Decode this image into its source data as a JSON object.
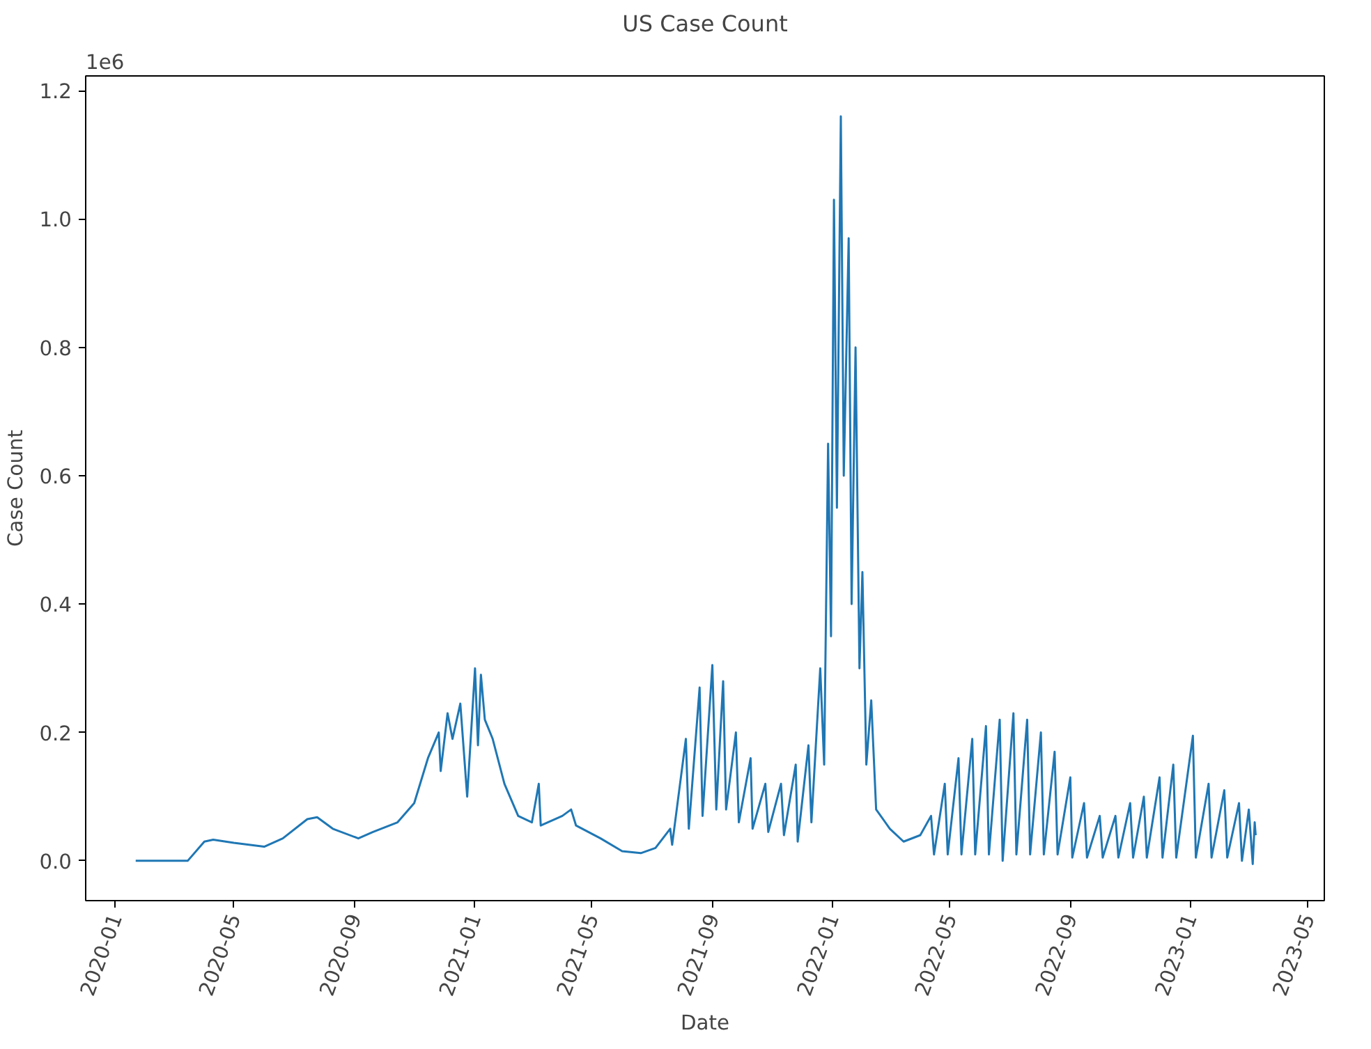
{
  "chart_data": {
    "type": "line",
    "title": "US Case Count",
    "xlabel": "Date",
    "ylabel": "Case Count",
    "annotations": [
      "1e6"
    ],
    "xlim": [
      "2019-12-02",
      "2023-05-18"
    ],
    "xticks": [
      "2020-01",
      "2020-05",
      "2020-09",
      "2021-01",
      "2021-05",
      "2021-09",
      "2022-01",
      "2022-05",
      "2022-09",
      "2023-01",
      "2023-05"
    ],
    "ylim": [
      -0.062,
      1.223
    ],
    "yticks": [
      {
        "value": 0,
        "label": "0.0"
      },
      {
        "value": 0.2,
        "label": "0.2"
      },
      {
        "value": 0.4,
        "label": "0.4"
      },
      {
        "value": 0.6,
        "label": "0.6"
      },
      {
        "value": 0.8,
        "label": "0.8"
      },
      {
        "value": 1.0,
        "label": "1.0"
      },
      {
        "value": 1.2,
        "label": "1.2"
      }
    ],
    "grid": false,
    "line_style": "solid",
    "marker": "none",
    "series": [
      {
        "color": "#1f77b4",
        "x": [
          "2020-01-22",
          "2020-03-15",
          "2020-04-01",
          "2020-04-10",
          "2020-05-01",
          "2020-06-01",
          "2020-06-20",
          "2020-07-15",
          "2020-07-25",
          "2020-08-10",
          "2020-09-05",
          "2020-09-20",
          "2020-10-15",
          "2020-11-01",
          "2020-11-15",
          "2020-11-26",
          "2020-11-28",
          "2020-12-05",
          "2020-12-10",
          "2020-12-18",
          "2020-12-25",
          "2021-01-02",
          "2021-01-05",
          "2021-01-08",
          "2021-01-12",
          "2021-01-20",
          "2021-02-01",
          "2021-02-15",
          "2021-03-01",
          "2021-03-08",
          "2021-03-10",
          "2021-04-01",
          "2021-04-10",
          "2021-04-15",
          "2021-05-10",
          "2021-06-01",
          "2021-06-20",
          "2021-07-05",
          "2021-07-20",
          "2021-07-22",
          "2021-08-05",
          "2021-08-08",
          "2021-08-19",
          "2021-08-22",
          "2021-09-01",
          "2021-09-05",
          "2021-09-12",
          "2021-09-15",
          "2021-09-25",
          "2021-09-28",
          "2021-10-10",
          "2021-10-12",
          "2021-10-25",
          "2021-10-28",
          "2021-11-10",
          "2021-11-13",
          "2021-11-25",
          "2021-11-27",
          "2021-12-08",
          "2021-12-11",
          "2021-12-20",
          "2021-12-24",
          "2021-12-28",
          "2021-12-31",
          "2022-01-03",
          "2022-01-06",
          "2022-01-10",
          "2022-01-13",
          "2022-01-18",
          "2022-01-21",
          "2022-01-25",
          "2022-01-29",
          "2022-02-01",
          "2022-02-05",
          "2022-02-10",
          "2022-02-15",
          "2022-03-01",
          "2022-03-15",
          "2022-04-01",
          "2022-04-12",
          "2022-04-15",
          "2022-04-26",
          "2022-04-29",
          "2022-05-10",
          "2022-05-13",
          "2022-05-24",
          "2022-05-27",
          "2022-06-07",
          "2022-06-10",
          "2022-06-21",
          "2022-06-24",
          "2022-07-05",
          "2022-07-08",
          "2022-07-19",
          "2022-07-22",
          "2022-08-02",
          "2022-08-05",
          "2022-08-16",
          "2022-08-19",
          "2022-09-01",
          "2022-09-03",
          "2022-09-15",
          "2022-09-18",
          "2022-10-01",
          "2022-10-04",
          "2022-10-17",
          "2022-10-20",
          "2022-11-01",
          "2022-11-04",
          "2022-11-15",
          "2022-11-18",
          "2022-12-01",
          "2022-12-04",
          "2022-12-15",
          "2022-12-18",
          "2023-01-04",
          "2023-01-07",
          "2023-01-20",
          "2023-01-23",
          "2023-02-05",
          "2023-02-08",
          "2023-02-20",
          "2023-02-23",
          "2023-03-02",
          "2023-03-06",
          "2023-03-08",
          "2023-03-09"
        ],
        "values": [
          0,
          0,
          0.03,
          0.033,
          0.028,
          0.022,
          0.035,
          0.065,
          0.068,
          0.05,
          0.035,
          0.045,
          0.06,
          0.09,
          0.16,
          0.2,
          0.14,
          0.23,
          0.19,
          0.245,
          0.1,
          0.3,
          0.18,
          0.29,
          0.22,
          0.19,
          0.12,
          0.07,
          0.06,
          0.12,
          0.055,
          0.07,
          0.08,
          0.055,
          0.035,
          0.015,
          0.012,
          0.02,
          0.05,
          0.025,
          0.19,
          0.05,
          0.27,
          0.07,
          0.305,
          0.08,
          0.28,
          0.08,
          0.2,
          0.06,
          0.16,
          0.05,
          0.12,
          0.045,
          0.12,
          0.04,
          0.15,
          0.03,
          0.18,
          0.06,
          0.3,
          0.15,
          0.65,
          0.35,
          1.03,
          0.55,
          1.16,
          0.6,
          0.97,
          0.4,
          0.8,
          0.3,
          0.45,
          0.15,
          0.25,
          0.08,
          0.05,
          0.03,
          0.04,
          0.07,
          0.01,
          0.12,
          0.01,
          0.16,
          0.01,
          0.19,
          0.01,
          0.21,
          0.01,
          0.22,
          0.0,
          0.23,
          0.01,
          0.22,
          0.01,
          0.2,
          0.01,
          0.17,
          0.01,
          0.13,
          0.005,
          0.09,
          0.005,
          0.07,
          0.005,
          0.07,
          0.005,
          0.09,
          0.005,
          0.1,
          0.005,
          0.13,
          0.005,
          0.15,
          0.005,
          0.195,
          0.005,
          0.12,
          0.005,
          0.11,
          0.005,
          0.09,
          0.0,
          0.08,
          -0.005,
          0.06,
          0.04
        ]
      }
    ]
  }
}
